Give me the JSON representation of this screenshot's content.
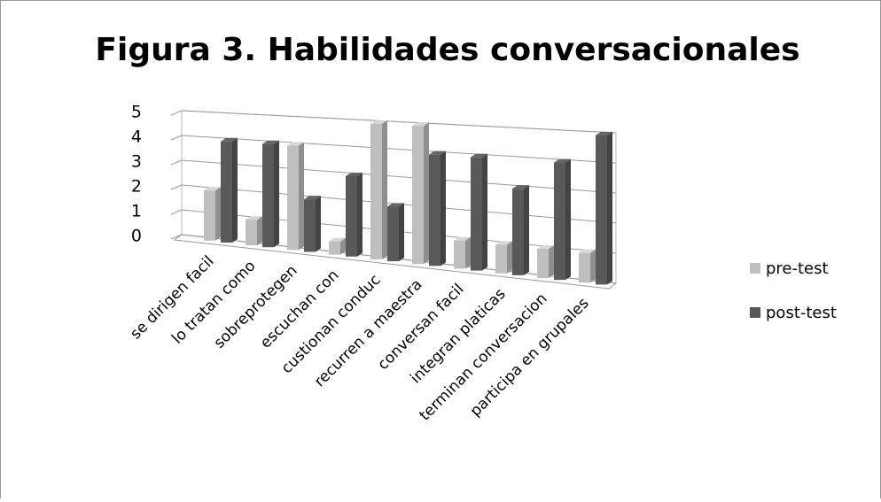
{
  "chart_data": {
    "type": "bar3d",
    "title": "Figura 3. Habilidades conversacionales",
    "categories": [
      "se dirigen facil",
      "lo tratan como",
      "sobreprotegen",
      "escuchan con",
      "custionan conduc",
      "recurren a maestra",
      "conversan facil",
      "integran platicas",
      "terminan conversacion",
      "participa en grupales"
    ],
    "series": [
      {
        "name": "pre-test",
        "color": "#bfbfbf",
        "values": [
          2,
          1,
          4,
          0.5,
          5,
          5,
          1,
          1,
          1,
          1
        ]
      },
      {
        "name": "post-test",
        "color": "#595959",
        "values": [
          4,
          4,
          2,
          3,
          2,
          4,
          4,
          3,
          4,
          5
        ]
      }
    ],
    "ylim": [
      0,
      5
    ],
    "yticks": [
      0,
      1,
      2,
      3,
      4,
      5
    ],
    "grid": true,
    "legend": "right"
  }
}
